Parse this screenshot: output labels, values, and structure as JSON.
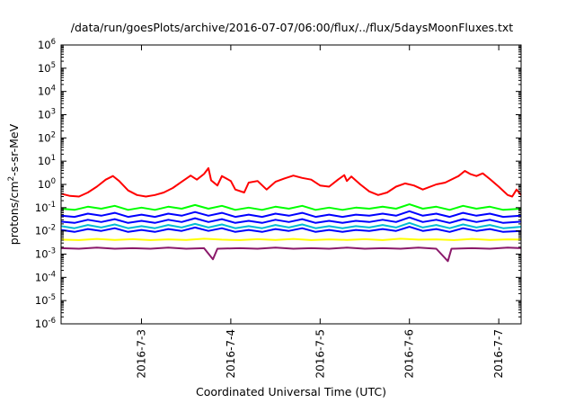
{
  "chart_data": {
    "type": "line",
    "title": "/data/run/goesPlots/archive/2016-07-07/06:00/flux/../flux/5daysMoonFluxes.txt",
    "xlabel": "Coordinated Universal Time (UTC)",
    "ylabel": {
      "base": "protons/cm",
      "sup": "2",
      "rest": "-s-sr-MeV"
    },
    "y_scale": "log",
    "ylim": [
      1e-06,
      1000000.0
    ],
    "xlim": [
      2.1,
      7.25
    ],
    "x_unit": "day of July 2016",
    "y_ticks": [
      {
        "exp": -6,
        "base": "10",
        "sup": "-6"
      },
      {
        "exp": -5,
        "base": "10",
        "sup": "-5"
      },
      {
        "exp": -4,
        "base": "10",
        "sup": "-4"
      },
      {
        "exp": -3,
        "base": "10",
        "sup": "-3"
      },
      {
        "exp": -2,
        "base": "10",
        "sup": "-2"
      },
      {
        "exp": -1,
        "base": "10",
        "sup": "-1"
      },
      {
        "exp": 0,
        "base": "10",
        "sup": "0"
      },
      {
        "exp": 1,
        "base": "10",
        "sup": "1"
      },
      {
        "exp": 2,
        "base": "10",
        "sup": "2"
      },
      {
        "exp": 3,
        "base": "10",
        "sup": "3"
      },
      {
        "exp": 4,
        "base": "10",
        "sup": "4"
      },
      {
        "exp": 5,
        "base": "10",
        "sup": "5"
      },
      {
        "exp": 6,
        "base": "10",
        "sup": "6"
      }
    ],
    "x_ticks": [
      {
        "x": 3,
        "label": "2016-7-3"
      },
      {
        "x": 4,
        "label": "2016-7-4"
      },
      {
        "x": 5,
        "label": "2016-7-5"
      },
      {
        "x": 6,
        "label": "2016-7-6"
      },
      {
        "x": 7,
        "label": "2016-7-7"
      }
    ],
    "grid": false,
    "legend": "none",
    "series": [
      {
        "color": "#ff0000",
        "values": [
          [
            2.1,
            0.4
          ],
          [
            2.2,
            0.32
          ],
          [
            2.3,
            0.3
          ],
          [
            2.4,
            0.45
          ],
          [
            2.5,
            0.8
          ],
          [
            2.6,
            1.6
          ],
          [
            2.68,
            2.3
          ],
          [
            2.75,
            1.4
          ],
          [
            2.85,
            0.55
          ],
          [
            2.95,
            0.35
          ],
          [
            3.05,
            0.3
          ],
          [
            3.15,
            0.35
          ],
          [
            3.25,
            0.45
          ],
          [
            3.35,
            0.7
          ],
          [
            3.45,
            1.3
          ],
          [
            3.55,
            2.4
          ],
          [
            3.62,
            1.6
          ],
          [
            3.7,
            2.8
          ],
          [
            3.75,
            5.0
          ],
          [
            3.78,
            1.5
          ],
          [
            3.85,
            0.9
          ],
          [
            3.9,
            2.3
          ],
          [
            4.0,
            1.4
          ],
          [
            4.05,
            0.6
          ],
          [
            4.15,
            0.45
          ],
          [
            4.2,
            1.2
          ],
          [
            4.3,
            1.4
          ],
          [
            4.4,
            0.6
          ],
          [
            4.5,
            1.3
          ],
          [
            4.6,
            1.8
          ],
          [
            4.7,
            2.4
          ],
          [
            4.8,
            1.9
          ],
          [
            4.9,
            1.6
          ],
          [
            5.0,
            0.9
          ],
          [
            5.1,
            0.8
          ],
          [
            5.2,
            1.6
          ],
          [
            5.27,
            2.5
          ],
          [
            5.3,
            1.4
          ],
          [
            5.35,
            2.2
          ],
          [
            5.45,
            1.0
          ],
          [
            5.55,
            0.5
          ],
          [
            5.65,
            0.35
          ],
          [
            5.75,
            0.45
          ],
          [
            5.85,
            0.8
          ],
          [
            5.95,
            1.1
          ],
          [
            6.05,
            0.9
          ],
          [
            6.15,
            0.6
          ],
          [
            6.3,
            1.0
          ],
          [
            6.4,
            1.2
          ],
          [
            6.55,
            2.3
          ],
          [
            6.62,
            3.8
          ],
          [
            6.68,
            2.8
          ],
          [
            6.75,
            2.3
          ],
          [
            6.82,
            3.0
          ],
          [
            6.9,
            1.7
          ],
          [
            7.0,
            0.8
          ],
          [
            7.1,
            0.35
          ],
          [
            7.15,
            0.3
          ],
          [
            7.2,
            0.6
          ],
          [
            7.25,
            0.35
          ]
        ]
      },
      {
        "color": "#00ff00",
        "values": [
          [
            2.1,
            0.09
          ],
          [
            2.25,
            0.08
          ],
          [
            2.4,
            0.11
          ],
          [
            2.55,
            0.09
          ],
          [
            2.7,
            0.12
          ],
          [
            2.85,
            0.08
          ],
          [
            3.0,
            0.1
          ],
          [
            3.15,
            0.08
          ],
          [
            3.3,
            0.11
          ],
          [
            3.45,
            0.09
          ],
          [
            3.6,
            0.13
          ],
          [
            3.75,
            0.09
          ],
          [
            3.9,
            0.12
          ],
          [
            4.05,
            0.08
          ],
          [
            4.2,
            0.1
          ],
          [
            4.35,
            0.08
          ],
          [
            4.5,
            0.11
          ],
          [
            4.65,
            0.09
          ],
          [
            4.8,
            0.12
          ],
          [
            4.95,
            0.08
          ],
          [
            5.1,
            0.1
          ],
          [
            5.25,
            0.08
          ],
          [
            5.4,
            0.1
          ],
          [
            5.55,
            0.09
          ],
          [
            5.7,
            0.11
          ],
          [
            5.85,
            0.09
          ],
          [
            6.0,
            0.14
          ],
          [
            6.15,
            0.09
          ],
          [
            6.3,
            0.11
          ],
          [
            6.45,
            0.08
          ],
          [
            6.6,
            0.12
          ],
          [
            6.75,
            0.09
          ],
          [
            6.9,
            0.11
          ],
          [
            7.05,
            0.08
          ],
          [
            7.25,
            0.09
          ]
        ]
      },
      {
        "color": "#0000ff",
        "values": [
          [
            2.1,
            0.045
          ],
          [
            2.25,
            0.04
          ],
          [
            2.4,
            0.055
          ],
          [
            2.55,
            0.045
          ],
          [
            2.7,
            0.06
          ],
          [
            2.85,
            0.04
          ],
          [
            3.0,
            0.05
          ],
          [
            3.15,
            0.04
          ],
          [
            3.3,
            0.055
          ],
          [
            3.45,
            0.045
          ],
          [
            3.6,
            0.065
          ],
          [
            3.75,
            0.045
          ],
          [
            3.9,
            0.06
          ],
          [
            4.05,
            0.04
          ],
          [
            4.2,
            0.05
          ],
          [
            4.35,
            0.04
          ],
          [
            4.5,
            0.055
          ],
          [
            4.65,
            0.045
          ],
          [
            4.8,
            0.06
          ],
          [
            4.95,
            0.04
          ],
          [
            5.1,
            0.05
          ],
          [
            5.25,
            0.04
          ],
          [
            5.4,
            0.05
          ],
          [
            5.55,
            0.045
          ],
          [
            5.7,
            0.055
          ],
          [
            5.85,
            0.045
          ],
          [
            6.0,
            0.07
          ],
          [
            6.15,
            0.045
          ],
          [
            6.3,
            0.055
          ],
          [
            6.45,
            0.04
          ],
          [
            6.6,
            0.06
          ],
          [
            6.75,
            0.045
          ],
          [
            6.9,
            0.055
          ],
          [
            7.05,
            0.04
          ],
          [
            7.25,
            0.045
          ]
        ]
      },
      {
        "color": "#0000ff",
        "values": [
          [
            2.1,
            0.025
          ],
          [
            2.25,
            0.022
          ],
          [
            2.4,
            0.03
          ],
          [
            2.55,
            0.024
          ],
          [
            2.7,
            0.032
          ],
          [
            2.85,
            0.022
          ],
          [
            3.0,
            0.027
          ],
          [
            3.15,
            0.022
          ],
          [
            3.3,
            0.03
          ],
          [
            3.45,
            0.024
          ],
          [
            3.6,
            0.035
          ],
          [
            3.75,
            0.024
          ],
          [
            3.9,
            0.032
          ],
          [
            4.05,
            0.022
          ],
          [
            4.2,
            0.027
          ],
          [
            4.35,
            0.022
          ],
          [
            4.5,
            0.03
          ],
          [
            4.65,
            0.024
          ],
          [
            4.8,
            0.032
          ],
          [
            4.95,
            0.022
          ],
          [
            5.1,
            0.027
          ],
          [
            5.25,
            0.022
          ],
          [
            5.4,
            0.027
          ],
          [
            5.55,
            0.024
          ],
          [
            5.7,
            0.03
          ],
          [
            5.85,
            0.024
          ],
          [
            6.0,
            0.038
          ],
          [
            6.15,
            0.024
          ],
          [
            6.3,
            0.03
          ],
          [
            6.45,
            0.022
          ],
          [
            6.6,
            0.032
          ],
          [
            6.75,
            0.024
          ],
          [
            6.9,
            0.03
          ],
          [
            7.05,
            0.022
          ],
          [
            7.25,
            0.025
          ]
        ]
      },
      {
        "color": "#00bcd4",
        "values": [
          [
            2.1,
            0.016
          ],
          [
            2.25,
            0.013
          ],
          [
            2.4,
            0.018
          ],
          [
            2.55,
            0.014
          ],
          [
            2.7,
            0.019
          ],
          [
            2.85,
            0.013
          ],
          [
            3.0,
            0.016
          ],
          [
            3.15,
            0.013
          ],
          [
            3.3,
            0.018
          ],
          [
            3.45,
            0.014
          ],
          [
            3.6,
            0.02
          ],
          [
            3.75,
            0.014
          ],
          [
            3.9,
            0.019
          ],
          [
            4.05,
            0.013
          ],
          [
            4.2,
            0.016
          ],
          [
            4.35,
            0.013
          ],
          [
            4.5,
            0.018
          ],
          [
            4.65,
            0.014
          ],
          [
            4.8,
            0.019
          ],
          [
            4.95,
            0.013
          ],
          [
            5.1,
            0.016
          ],
          [
            5.25,
            0.013
          ],
          [
            5.4,
            0.016
          ],
          [
            5.55,
            0.014
          ],
          [
            5.7,
            0.018
          ],
          [
            5.85,
            0.014
          ],
          [
            6.0,
            0.022
          ],
          [
            6.15,
            0.014
          ],
          [
            6.3,
            0.018
          ],
          [
            6.45,
            0.013
          ],
          [
            6.6,
            0.019
          ],
          [
            6.75,
            0.014
          ],
          [
            6.9,
            0.018
          ],
          [
            7.05,
            0.013
          ],
          [
            7.25,
            0.015
          ]
        ]
      },
      {
        "color": "#0000ff",
        "values": [
          [
            2.1,
            0.011
          ],
          [
            2.25,
            0.009
          ],
          [
            2.4,
            0.012
          ],
          [
            2.55,
            0.01
          ],
          [
            2.7,
            0.013
          ],
          [
            2.85,
            0.009
          ],
          [
            3.0,
            0.011
          ],
          [
            3.15,
            0.009
          ],
          [
            3.3,
            0.012
          ],
          [
            3.45,
            0.01
          ],
          [
            3.6,
            0.014
          ],
          [
            3.75,
            0.01
          ],
          [
            3.9,
            0.013
          ],
          [
            4.05,
            0.009
          ],
          [
            4.2,
            0.011
          ],
          [
            4.35,
            0.009
          ],
          [
            4.5,
            0.012
          ],
          [
            4.65,
            0.01
          ],
          [
            4.8,
            0.013
          ],
          [
            4.95,
            0.009
          ],
          [
            5.1,
            0.011
          ],
          [
            5.25,
            0.009
          ],
          [
            5.4,
            0.011
          ],
          [
            5.55,
            0.01
          ],
          [
            5.7,
            0.012
          ],
          [
            5.85,
            0.01
          ],
          [
            6.0,
            0.015
          ],
          [
            6.15,
            0.01
          ],
          [
            6.3,
            0.012
          ],
          [
            6.45,
            0.009
          ],
          [
            6.6,
            0.013
          ],
          [
            6.75,
            0.01
          ],
          [
            6.9,
            0.012
          ],
          [
            7.05,
            0.009
          ],
          [
            7.25,
            0.01
          ]
        ]
      },
      {
        "color": "#ffff00",
        "values": [
          [
            2.1,
            0.0042
          ],
          [
            2.3,
            0.004
          ],
          [
            2.5,
            0.0045
          ],
          [
            2.7,
            0.0041
          ],
          [
            2.9,
            0.0044
          ],
          [
            3.1,
            0.004
          ],
          [
            3.3,
            0.0043
          ],
          [
            3.5,
            0.0041
          ],
          [
            3.7,
            0.0046
          ],
          [
            3.9,
            0.0042
          ],
          [
            4.1,
            0.004
          ],
          [
            4.3,
            0.0044
          ],
          [
            4.5,
            0.0041
          ],
          [
            4.7,
            0.0045
          ],
          [
            4.9,
            0.004
          ],
          [
            5.1,
            0.0043
          ],
          [
            5.3,
            0.0041
          ],
          [
            5.5,
            0.0044
          ],
          [
            5.7,
            0.004
          ],
          [
            5.9,
            0.0046
          ],
          [
            6.1,
            0.0042
          ],
          [
            6.3,
            0.0043
          ],
          [
            6.5,
            0.004
          ],
          [
            6.7,
            0.0045
          ],
          [
            6.9,
            0.0041
          ],
          [
            7.1,
            0.0043
          ],
          [
            7.25,
            0.0042
          ]
        ]
      },
      {
        "color": "#8b1a6b",
        "values": [
          [
            2.1,
            0.0018
          ],
          [
            2.3,
            0.0017
          ],
          [
            2.5,
            0.0019
          ],
          [
            2.7,
            0.0017
          ],
          [
            2.9,
            0.0018
          ],
          [
            3.1,
            0.0017
          ],
          [
            3.3,
            0.0019
          ],
          [
            3.5,
            0.0017
          ],
          [
            3.7,
            0.0018
          ],
          [
            3.8,
            0.0006
          ],
          [
            3.85,
            0.0017
          ],
          [
            4.1,
            0.0018
          ],
          [
            4.3,
            0.0017
          ],
          [
            4.5,
            0.0019
          ],
          [
            4.7,
            0.0017
          ],
          [
            4.9,
            0.0018
          ],
          [
            5.1,
            0.0017
          ],
          [
            5.3,
            0.0019
          ],
          [
            5.5,
            0.0017
          ],
          [
            5.7,
            0.0018
          ],
          [
            5.9,
            0.0017
          ],
          [
            6.1,
            0.0019
          ],
          [
            6.3,
            0.0017
          ],
          [
            6.43,
            0.0005
          ],
          [
            6.47,
            0.0017
          ],
          [
            6.7,
            0.0018
          ],
          [
            6.9,
            0.0017
          ],
          [
            7.1,
            0.0019
          ],
          [
            7.25,
            0.0018
          ]
        ]
      }
    ]
  }
}
